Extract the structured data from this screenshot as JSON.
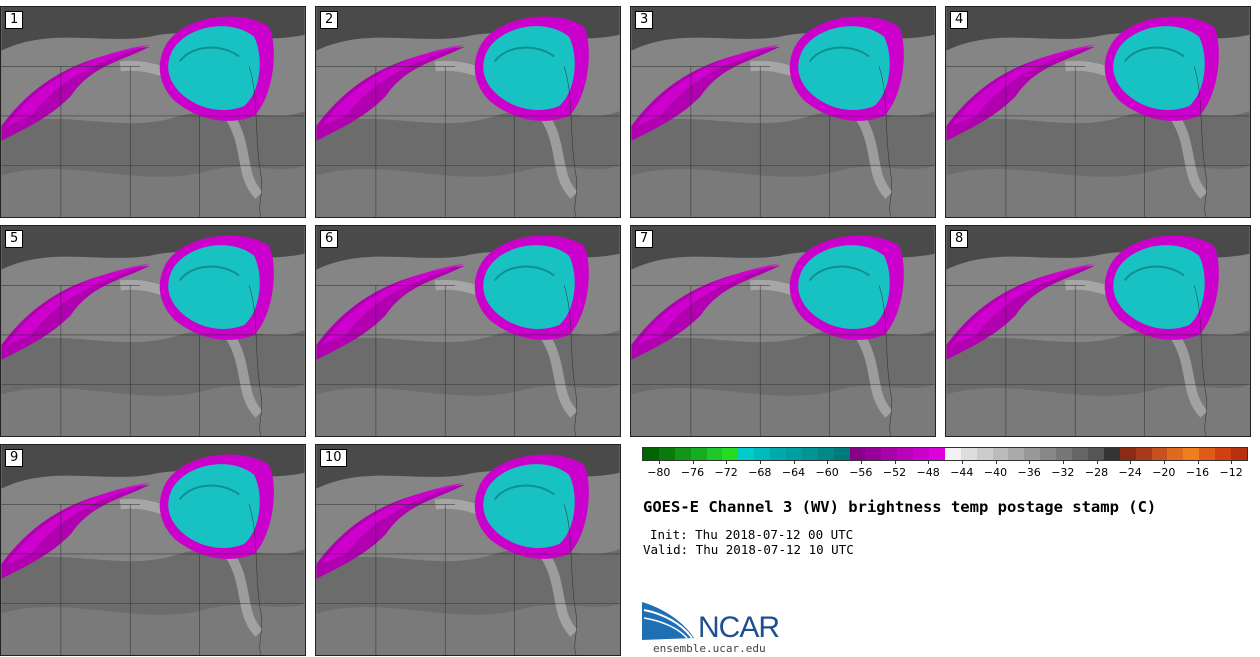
{
  "panels": [
    {
      "label": "1"
    },
    {
      "label": "2"
    },
    {
      "label": "3"
    },
    {
      "label": "4"
    },
    {
      "label": "5"
    },
    {
      "label": "6"
    },
    {
      "label": "7"
    },
    {
      "label": "8"
    },
    {
      "label": "9"
    },
    {
      "label": "10"
    }
  ],
  "colorbar": {
    "colors": [
      "#006400",
      "#0a7a0a",
      "#11951a",
      "#17ad20",
      "#1ec828",
      "#22dd22",
      "#00cccc",
      "#00bbbb",
      "#00aaaa",
      "#009f9f",
      "#009494",
      "#008888",
      "#007b7b",
      "#880088",
      "#990099",
      "#aa00aa",
      "#bb00bb",
      "#cc00cc",
      "#dd00dd",
      "#f2f2f2",
      "#dddddd",
      "#cccccc",
      "#bbbbbb",
      "#aaaaaa",
      "#999999",
      "#888888",
      "#777777",
      "#666666",
      "#555555",
      "#333333",
      "#8b2a15",
      "#a93a1a",
      "#c5521e",
      "#e06a1c",
      "#f07e1c",
      "#e05a18",
      "#d04010",
      "#b83010"
    ],
    "ticks": [
      "-80",
      "-76",
      "-72",
      "-68",
      "-64",
      "-60",
      "-56",
      "-52",
      "-48",
      "-44",
      "-40",
      "-36",
      "-32",
      "-28",
      "-24",
      "-20",
      "-16",
      "-12"
    ],
    "min": -82,
    "max": -10
  },
  "title": "GOES-E Channel 3 (WV) brightness temp postage stamp (C)",
  "init_line": "Init: Thu 2018-07-12 00 UTC",
  "valid_line": "Valid: Thu 2018-07-12 10 UTC",
  "logo_text": "NCAR",
  "site": "ensemble.ucar.edu"
}
